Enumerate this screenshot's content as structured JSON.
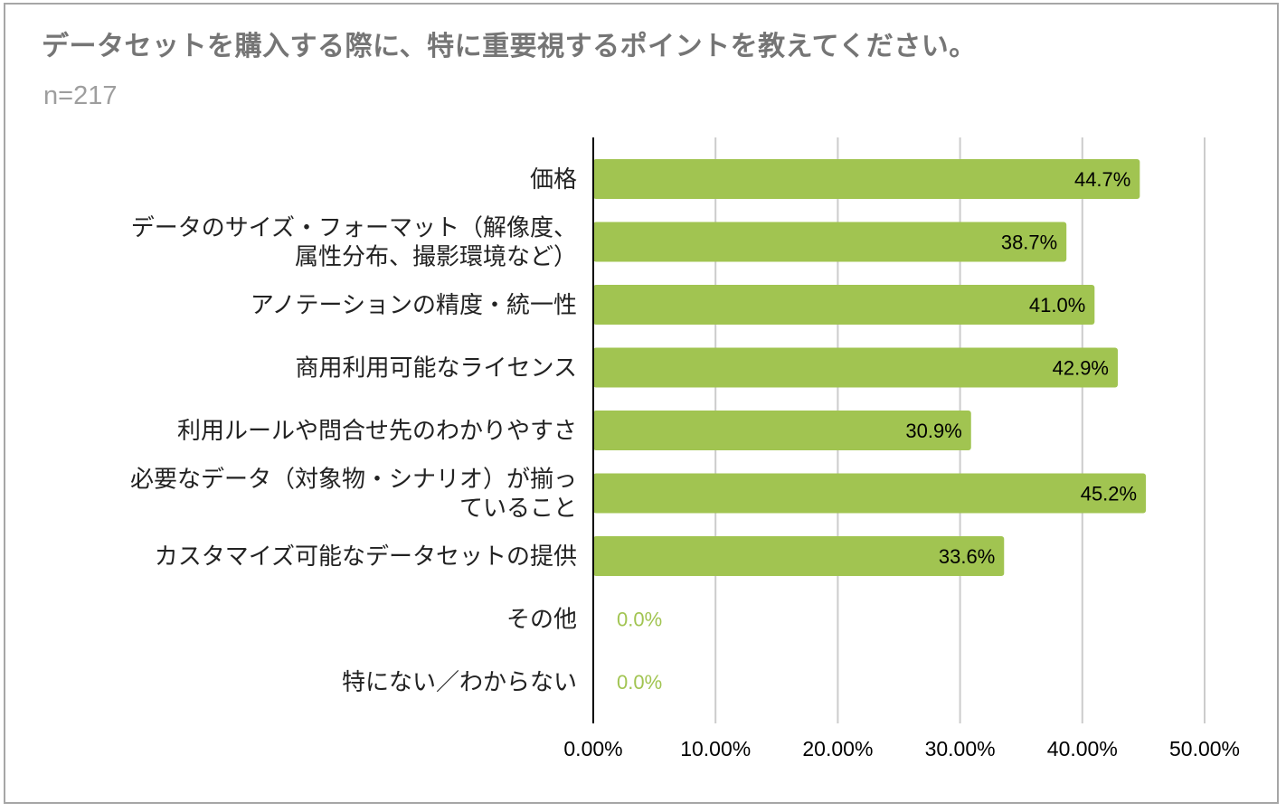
{
  "chart_data": {
    "type": "bar",
    "orientation": "horizontal",
    "title": "データセットを購入する際に、特に重要視するポイントを教えてください。",
    "subtitle": "n=217",
    "categories": [
      [
        "価格"
      ],
      [
        "データのサイズ・フォーマット（解像度、",
        "属性分布、撮影環境など）"
      ],
      [
        "アノテーションの精度・統一性"
      ],
      [
        "商用利用可能なライセンス"
      ],
      [
        "利用ルールや問合せ先のわかりやすさ"
      ],
      [
        "必要なデータ（対象物・シナリオ）が揃っ",
        "ていること"
      ],
      [
        "カスタマイズ可能なデータセットの提供"
      ],
      [
        "その他"
      ],
      [
        "特にない／わからない"
      ]
    ],
    "values": [
      44.7,
      38.7,
      41.0,
      42.9,
      30.9,
      45.2,
      33.6,
      0.0,
      0.0
    ],
    "value_labels": [
      "44.7%",
      "38.7%",
      "41.0%",
      "42.9%",
      "30.9%",
      "45.2%",
      "33.6%",
      "0.0%",
      "0.0%"
    ],
    "xlim": [
      0,
      50
    ],
    "xticks": [
      0,
      10,
      20,
      30,
      40,
      50
    ],
    "xtick_labels": [
      "0.00%",
      "10.00%",
      "20.00%",
      "30.00%",
      "40.00%",
      "50.00%"
    ],
    "grid": true,
    "legend": "none",
    "bar_color": "#a1c451"
  }
}
